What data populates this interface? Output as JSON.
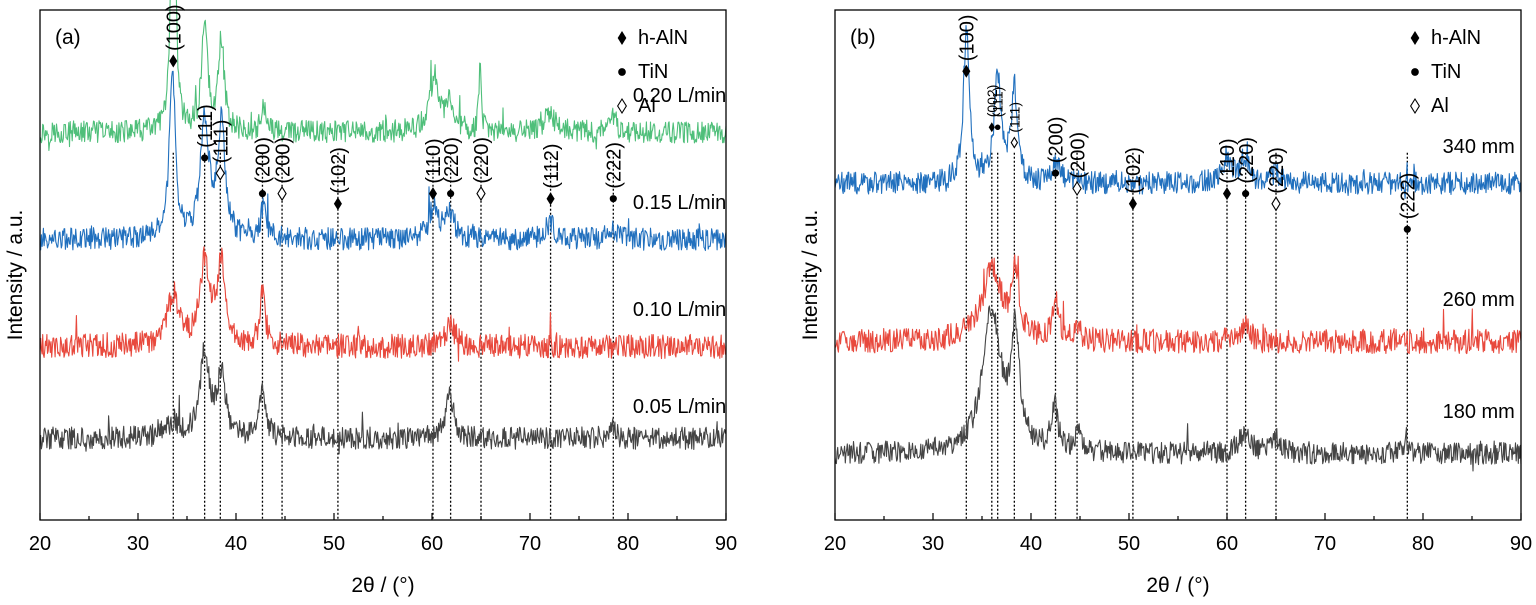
{
  "chart_data": [
    {
      "type": "line",
      "panel_label": "(a)",
      "xlabel": "2θ / (°)",
      "ylabel": "Intensity / a.u.",
      "xlim": [
        20,
        90
      ],
      "xticks": [
        "20",
        "30",
        "40",
        "50",
        "60",
        "70",
        "80",
        "90"
      ],
      "legend": {
        "position": "top-right",
        "entries": [
          {
            "marker": "filled-diamond",
            "label": "h-AlN"
          },
          {
            "marker": "filled-circle",
            "label": "TiN"
          },
          {
            "marker": "open-diamond",
            "label": "Al"
          }
        ]
      },
      "series": [
        {
          "name": "0.20 L/min",
          "color": "#4fbf7a",
          "baseline": 0.76,
          "noise": 0.022,
          "peaks": [
            [
              33.6,
              0.62,
              0.25
            ],
            [
              36.8,
              0.22,
              0.35
            ],
            [
              38.5,
              0.18,
              0.35
            ],
            [
              42.8,
              0.05,
              0.3
            ],
            [
              60.2,
              0.1,
              0.6
            ],
            [
              61.8,
              0.05,
              0.5
            ],
            [
              64.9,
              0.12,
              0.15
            ],
            [
              72.0,
              0.04,
              0.6
            ],
            [
              78.5,
              0.03,
              0.4
            ]
          ]
        },
        {
          "name": "0.15 L/min",
          "color": "#2170be",
          "baseline": 0.55,
          "noise": 0.022,
          "peaks": [
            [
              33.5,
              0.34,
              0.35
            ],
            [
              36.8,
              0.24,
              0.5
            ],
            [
              38.5,
              0.22,
              0.45
            ],
            [
              42.8,
              0.06,
              0.35
            ],
            [
              60.2,
              0.06,
              0.6
            ],
            [
              61.8,
              0.05,
              0.5
            ],
            [
              72.0,
              0.03,
              0.6
            ],
            [
              78.5,
              0.02,
              0.5
            ]
          ]
        },
        {
          "name": "0.10 L/min",
          "color": "#e8493d",
          "baseline": 0.34,
          "noise": 0.024,
          "peaks": [
            [
              33.6,
              0.1,
              0.7
            ],
            [
              36.8,
              0.16,
              0.6
            ],
            [
              38.5,
              0.16,
              0.5
            ],
            [
              42.7,
              0.1,
              0.35
            ],
            [
              61.9,
              0.04,
              0.6
            ]
          ]
        },
        {
          "name": "0.05 L/min",
          "color": "#444444",
          "baseline": 0.16,
          "noise": 0.022,
          "peaks": [
            [
              33.6,
              0.03,
              0.8
            ],
            [
              36.8,
              0.17,
              0.55
            ],
            [
              38.5,
              0.12,
              0.5
            ],
            [
              42.7,
              0.09,
              0.4
            ],
            [
              61.8,
              0.08,
              0.5
            ],
            [
              78.3,
              0.02,
              0.4
            ]
          ]
        }
      ],
      "reference_lines": [
        33.6,
        36.8,
        38.4,
        42.7,
        44.7,
        50.4,
        60.1,
        61.9,
        65.0,
        72.1,
        78.5
      ],
      "annotations": [
        {
          "x": 33.6,
          "y": 0.9,
          "marker": "filled-diamond",
          "label": "(100)"
        },
        {
          "x": 36.8,
          "y": 0.71,
          "marker": "filled-circle",
          "label": "(111)"
        },
        {
          "x": 38.4,
          "y": 0.68,
          "marker": "open-diamond",
          "label": "(111)"
        },
        {
          "x": 42.7,
          "y": 0.64,
          "marker": "filled-circle",
          "label": "(200)"
        },
        {
          "x": 44.7,
          "y": 0.64,
          "marker": "open-diamond",
          "label": "(200)"
        },
        {
          "x": 50.4,
          "y": 0.62,
          "marker": "filled-diamond",
          "label": "(102)"
        },
        {
          "x": 60.1,
          "y": 0.64,
          "marker": "filled-diamond",
          "label": "(110)"
        },
        {
          "x": 61.9,
          "y": 0.64,
          "marker": "filled-circle",
          "label": "(220)"
        },
        {
          "x": 65.0,
          "y": 0.64,
          "marker": "open-diamond",
          "label": "(220)"
        },
        {
          "x": 72.1,
          "y": 0.63,
          "marker": "filled-diamond",
          "label": "(112)"
        },
        {
          "x": 78.5,
          "y": 0.63,
          "marker": "filled-circle",
          "label": "(222)"
        }
      ],
      "curve_labels": [
        {
          "x": 80.5,
          "y": 0.82,
          "text": "0.20 L/min"
        },
        {
          "x": 80.5,
          "y": 0.61,
          "text": "0.15 L/min"
        },
        {
          "x": 80.5,
          "y": 0.4,
          "text": "0.10 L/min"
        },
        {
          "x": 80.5,
          "y": 0.21,
          "text": "0.05 L/min"
        }
      ]
    },
    {
      "type": "line",
      "panel_label": "(b)",
      "xlabel": "2θ / (°)",
      "ylabel": "Intensity / a.u.",
      "xlim": [
        20,
        90
      ],
      "xticks": [
        "20",
        "30",
        "40",
        "50",
        "60",
        "70",
        "80",
        "90"
      ],
      "legend": {
        "position": "top-right",
        "entries": [
          {
            "marker": "filled-diamond",
            "label": "h-AlN"
          },
          {
            "marker": "filled-circle",
            "label": "TiN"
          },
          {
            "marker": "open-diamond",
            "label": "Al"
          }
        ]
      },
      "series": [
        {
          "name": "340 mm",
          "color": "#2170be",
          "baseline": 0.66,
          "noise": 0.022,
          "peaks": [
            [
              33.4,
              0.3,
              0.35
            ],
            [
              36.6,
              0.2,
              0.45
            ],
            [
              38.3,
              0.18,
              0.4
            ],
            [
              42.6,
              0.04,
              0.4
            ],
            [
              60.0,
              0.05,
              0.6
            ],
            [
              61.8,
              0.05,
              0.5
            ],
            [
              65.0,
              0.02,
              0.5
            ]
          ]
        },
        {
          "name": "260 mm",
          "color": "#e8493d",
          "baseline": 0.35,
          "noise": 0.024,
          "peaks": [
            [
              36.0,
              0.14,
              1.2
            ],
            [
              38.4,
              0.12,
              0.45
            ],
            [
              42.5,
              0.08,
              0.35
            ],
            [
              44.8,
              0.03,
              0.3
            ],
            [
              61.8,
              0.03,
              0.6
            ]
          ]
        },
        {
          "name": "180 mm",
          "color": "#444444",
          "baseline": 0.13,
          "noise": 0.022,
          "peaks": [
            [
              36.0,
              0.28,
              1.1
            ],
            [
              38.4,
              0.22,
              0.5
            ],
            [
              42.4,
              0.09,
              0.4
            ],
            [
              44.8,
              0.04,
              0.35
            ],
            [
              61.8,
              0.04,
              0.7
            ],
            [
              65.0,
              0.03,
              0.6
            ],
            [
              78.3,
              0.03,
              0.3
            ]
          ]
        }
      ],
      "reference_lines": [
        33.4,
        36.0,
        36.6,
        38.3,
        42.5,
        44.7,
        50.4,
        60.0,
        61.9,
        65.0,
        78.4
      ],
      "annotations": [
        {
          "x": 33.4,
          "y": 0.88,
          "marker": "filled-diamond",
          "label": "(100)"
        },
        {
          "x": 36.0,
          "y": 0.77,
          "marker": "filled-diamond",
          "label": "(002)",
          "small": true
        },
        {
          "x": 36.6,
          "y": 0.77,
          "marker": "filled-circle",
          "label": "(111)",
          "small": true
        },
        {
          "x": 38.3,
          "y": 0.74,
          "marker": "open-diamond",
          "label": "(111)",
          "small": true
        },
        {
          "x": 42.5,
          "y": 0.68,
          "marker": "filled-circle",
          "label": "(200)"
        },
        {
          "x": 44.7,
          "y": 0.65,
          "marker": "open-diamond",
          "label": "(200)"
        },
        {
          "x": 50.4,
          "y": 0.62,
          "marker": "filled-diamond",
          "label": "(102)"
        },
        {
          "x": 60.0,
          "y": 0.64,
          "marker": "filled-diamond",
          "label": "(110)"
        },
        {
          "x": 61.9,
          "y": 0.64,
          "marker": "filled-circle",
          "label": "(220)"
        },
        {
          "x": 65.0,
          "y": 0.62,
          "marker": "open-diamond",
          "label": "(220)"
        },
        {
          "x": 78.4,
          "y": 0.57,
          "marker": "filled-circle",
          "label": "(222)"
        }
      ],
      "curve_labels": [
        {
          "x": 82.0,
          "y": 0.72,
          "text": "340 mm"
        },
        {
          "x": 82.0,
          "y": 0.42,
          "text": "260 mm"
        },
        {
          "x": 82.0,
          "y": 0.2,
          "text": "180 mm"
        }
      ]
    }
  ]
}
